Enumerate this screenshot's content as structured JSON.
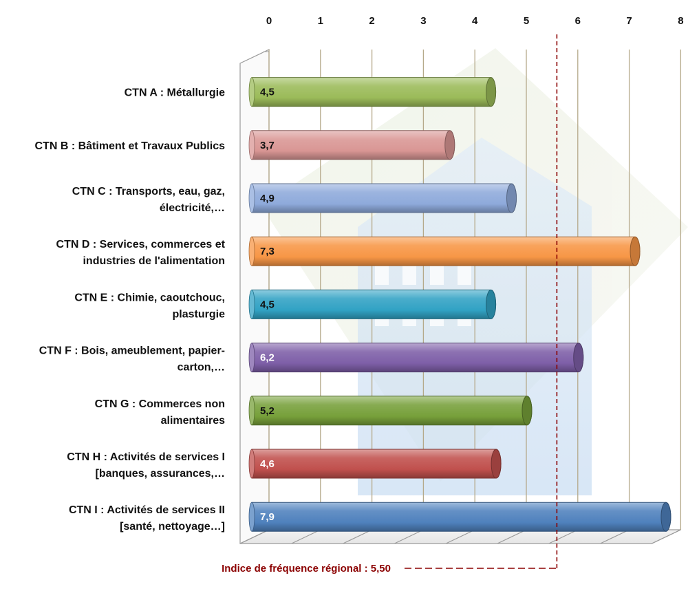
{
  "chart_data": {
    "type": "bar",
    "orientation": "horizontal",
    "title": "",
    "xlabel": "",
    "ylabel": "",
    "xlim": [
      0,
      8
    ],
    "x_ticks": [
      0,
      1,
      2,
      3,
      4,
      5,
      6,
      7,
      8
    ],
    "x_axis_position": "top",
    "grid": true,
    "categories": [
      [
        "CTN A : Métallurgie"
      ],
      [
        "CTN B : Bâtiment et Travaux Publics"
      ],
      [
        "CTN C : Transports, eau, gaz,",
        "électricité,…"
      ],
      [
        "CTN D : Services, commerces et",
        "industries de l'alimentation"
      ],
      [
        "CTN E : Chimie, caoutchouc,",
        "plasturgie"
      ],
      [
        "CTN F : Bois, ameublement, papier-",
        "carton,…"
      ],
      [
        "CTN G : Commerces non",
        "alimentaires"
      ],
      [
        "CTN H : Activités de services I",
        "[banques, assurances,…"
      ],
      [
        "CTN I : Activités de services II",
        "[santé, nettoyage…]"
      ]
    ],
    "values": [
      4.5,
      3.7,
      4.9,
      7.3,
      4.5,
      6.2,
      5.2,
      4.6,
      7.9
    ],
    "value_labels": [
      "4,5",
      "3,7",
      "4,9",
      "7,3",
      "4,5",
      "6,2",
      "5,2",
      "4,6",
      "7,9"
    ],
    "colors": [
      "#9bbb59",
      "#d99694",
      "#8eaadb",
      "#f79646",
      "#31a2c4",
      "#7e5fa8",
      "#77a03a",
      "#c0504d",
      "#4f81bd"
    ],
    "value_label_colors": [
      "#111111",
      "#111111",
      "#111111",
      "#111111",
      "#111111",
      "#ffffff",
      "#111111",
      "#ffffff",
      "#ffffff"
    ],
    "reference_line": {
      "value": 5.5,
      "label": "Indice de fréquence régional : 5,50",
      "color": "#8b0000"
    }
  }
}
